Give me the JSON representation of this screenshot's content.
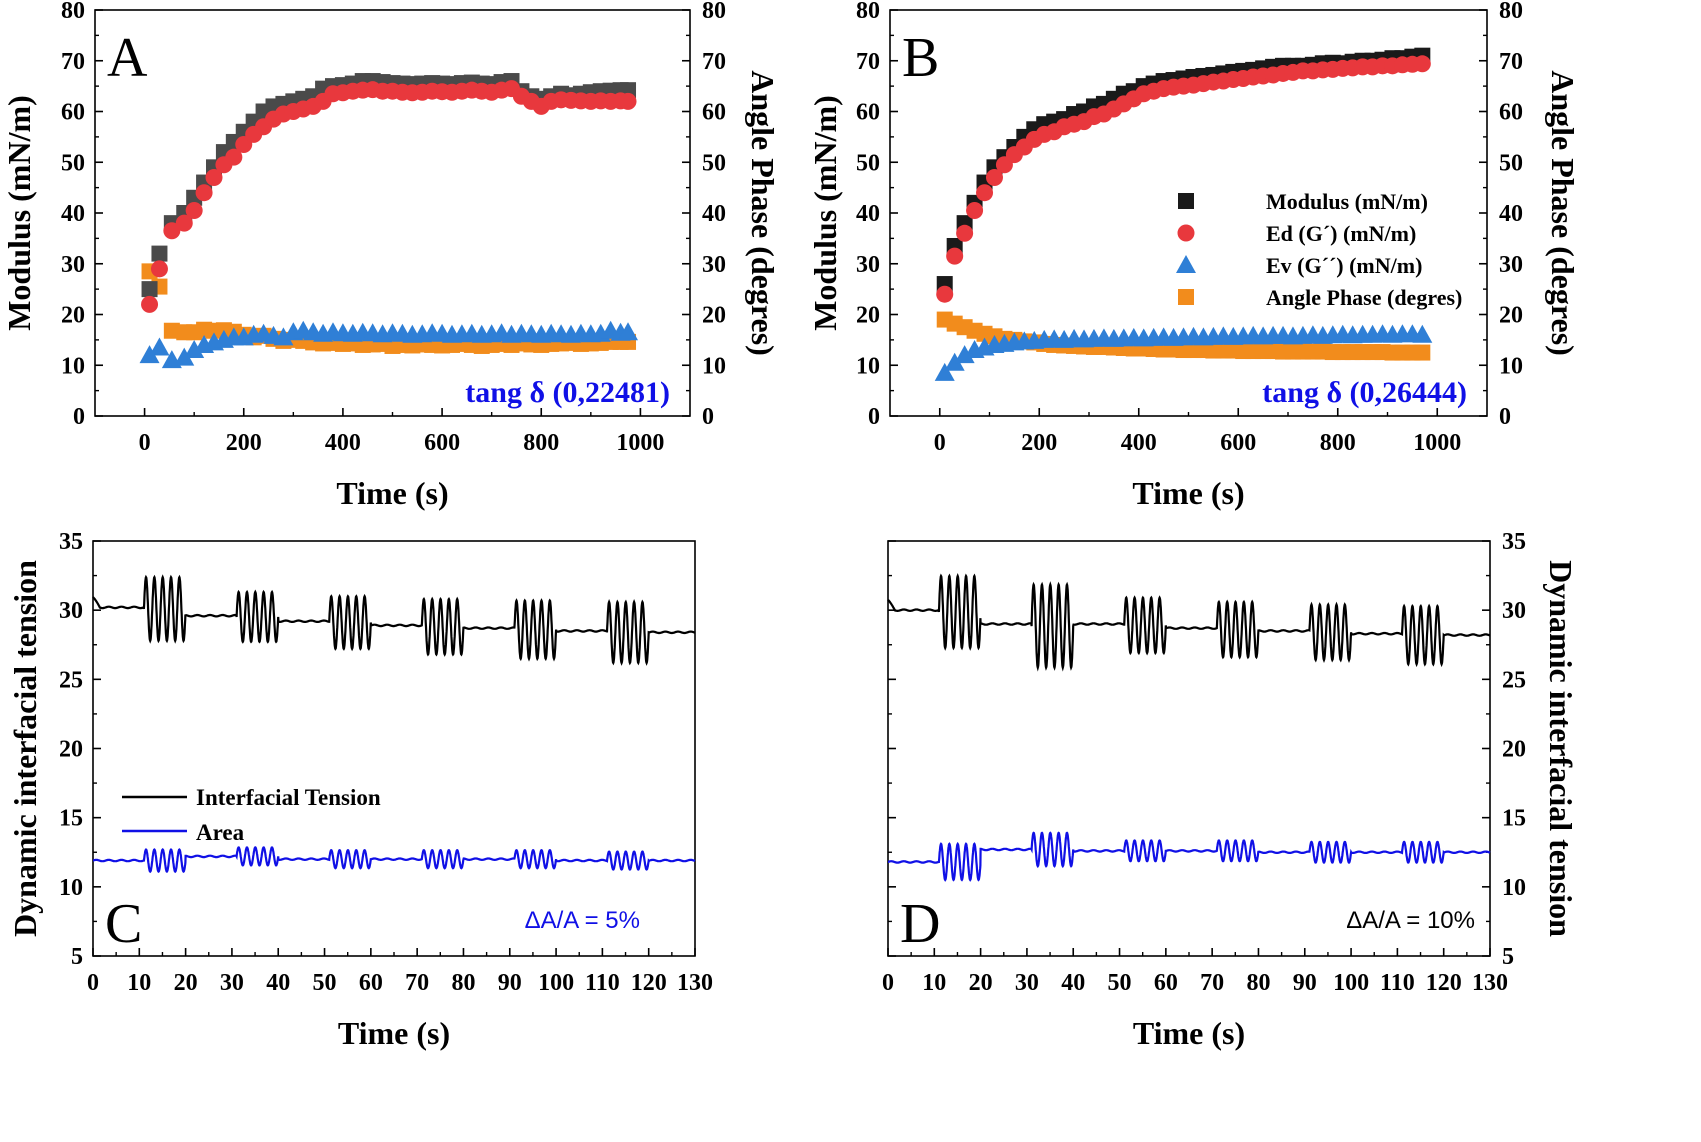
{
  "colors": {
    "modulus": "#1a1a1a",
    "modulus_A": "#4a4a4a",
    "ed": "#e8383d",
    "ev": "#2f7fd6",
    "angle": "#f28c1c",
    "tension": "#000000",
    "area": "#1010e6",
    "annotation_blue": "#1010e6"
  },
  "chart_data": [
    {
      "panel": "A",
      "type": "scatter",
      "title": "",
      "panel_label": "A",
      "xlabel": "Time (s)",
      "ylabel": "Modulus (mN/m)",
      "y2label": "Angle Phase (degres)",
      "xlim": [
        -100,
        1100
      ],
      "ylim": [
        0,
        80
      ],
      "y2lim": [
        0,
        80
      ],
      "xticks": [
        0,
        200,
        400,
        600,
        800,
        1000
      ],
      "yticks": [
        0,
        10,
        20,
        30,
        40,
        50,
        60,
        70,
        80
      ],
      "y2ticks": [
        0,
        10,
        20,
        30,
        40,
        50,
        60,
        70,
        80
      ],
      "annotation": "tang δ (0,22481)",
      "series": [
        {
          "key": "modulus",
          "x": [
            10,
            30,
            55,
            80,
            100,
            120,
            140,
            160,
            180,
            200,
            220,
            240,
            260,
            280,
            300,
            320,
            340,
            360,
            380,
            400,
            420,
            440,
            460,
            480,
            500,
            520,
            540,
            560,
            580,
            600,
            620,
            640,
            660,
            680,
            700,
            720,
            740,
            760,
            780,
            800,
            820,
            840,
            860,
            880,
            900,
            920,
            940,
            960,
            975
          ],
          "y": [
            25,
            32,
            38,
            40,
            43,
            46,
            49,
            52,
            54,
            56,
            58,
            60,
            61,
            61.5,
            62,
            62.5,
            63,
            64.5,
            65,
            65.2,
            65.5,
            66,
            66,
            65.8,
            65.6,
            65.5,
            65.4,
            65.5,
            65.6,
            65.5,
            65.4,
            65.6,
            65.7,
            65.5,
            65.4,
            65.8,
            66,
            64,
            63,
            62.5,
            63,
            63.5,
            63.2,
            63.5,
            63.8,
            64,
            64.1,
            64.2,
            64.2
          ]
        },
        {
          "key": "ed",
          "x": [
            10,
            30,
            55,
            80,
            100,
            120,
            140,
            160,
            180,
            200,
            220,
            240,
            260,
            280,
            300,
            320,
            340,
            360,
            380,
            400,
            420,
            440,
            460,
            480,
            500,
            520,
            540,
            560,
            580,
            600,
            620,
            640,
            660,
            680,
            700,
            720,
            740,
            760,
            780,
            800,
            820,
            840,
            860,
            880,
            900,
            920,
            940,
            960,
            975
          ],
          "y": [
            22,
            29,
            36.5,
            38,
            40.5,
            44,
            47,
            49.5,
            51,
            53.5,
            55.5,
            57,
            58.5,
            59.5,
            60,
            60.5,
            61,
            62,
            63.5,
            63.7,
            64,
            64.2,
            64.3,
            64,
            64,
            63.8,
            63.7,
            63.8,
            64,
            63.9,
            63.8,
            64,
            64.2,
            64,
            63.8,
            64.2,
            64.5,
            63,
            62,
            61,
            62,
            62.3,
            62.2,
            62.1,
            62,
            62.1,
            62,
            62.1,
            62
          ]
        },
        {
          "key": "ev",
          "x": [
            10,
            30,
            55,
            80,
            100,
            120,
            140,
            160,
            180,
            200,
            220,
            240,
            260,
            280,
            300,
            320,
            340,
            360,
            380,
            400,
            420,
            440,
            460,
            480,
            500,
            520,
            540,
            560,
            580,
            600,
            620,
            640,
            660,
            680,
            700,
            720,
            740,
            760,
            780,
            800,
            820,
            840,
            860,
            880,
            900,
            920,
            940,
            960,
            975
          ],
          "y": [
            12,
            13.5,
            11,
            11.5,
            13,
            14,
            14.5,
            15,
            15.5,
            15.5,
            16,
            16.2,
            15.8,
            15.5,
            16.5,
            16.8,
            16.5,
            16.2,
            16.5,
            16.3,
            16.2,
            16.4,
            16.3,
            16.1,
            16.3,
            16.2,
            16,
            16.1,
            16.3,
            16.2,
            16,
            16.1,
            16.2,
            16,
            16.1,
            16.3,
            16,
            16.2,
            16.1,
            16,
            16.2,
            16.1,
            16,
            16.2,
            16.1,
            16.2,
            16.8,
            16.4,
            16.5
          ]
        },
        {
          "key": "angle",
          "x": [
            10,
            30,
            55,
            80,
            100,
            120,
            140,
            160,
            180,
            200,
            220,
            240,
            260,
            280,
            300,
            320,
            340,
            360,
            380,
            400,
            420,
            440,
            460,
            480,
            500,
            520,
            540,
            560,
            580,
            600,
            620,
            640,
            660,
            680,
            700,
            720,
            740,
            760,
            780,
            800,
            820,
            840,
            860,
            880,
            900,
            920,
            940,
            960,
            975
          ],
          "y": [
            28.5,
            25.5,
            16.8,
            16.5,
            16.5,
            17,
            16.8,
            16.9,
            16.6,
            16,
            15.5,
            15.8,
            15.2,
            14.8,
            15,
            14.8,
            14.5,
            14.3,
            14.4,
            14.2,
            14.3,
            14,
            14.1,
            14.2,
            13.8,
            14,
            13.9,
            14.1,
            14,
            13.9,
            14,
            14.2,
            14,
            13.8,
            14,
            14.2,
            14,
            14.3,
            14.1,
            14,
            14.2,
            14.3,
            14.4,
            14.2,
            14.3,
            14.4,
            14.6,
            14.6,
            14.6
          ]
        }
      ]
    },
    {
      "panel": "B",
      "type": "scatter",
      "title": "",
      "panel_label": "B",
      "xlabel": "Time (s)",
      "ylabel": "Modulus (mN/m)",
      "y2label": "Angle Phase (degres)",
      "xlim": [
        -100,
        1100
      ],
      "ylim": [
        0,
        80
      ],
      "y2lim": [
        0,
        80
      ],
      "xticks": [
        0,
        200,
        400,
        600,
        800,
        1000
      ],
      "yticks": [
        0,
        10,
        20,
        30,
        40,
        50,
        60,
        70,
        80
      ],
      "y2ticks": [
        0,
        10,
        20,
        30,
        40,
        50,
        60,
        70,
        80
      ],
      "annotation": "tang δ (0,26444)",
      "legend_position": "center-right",
      "legend": [
        "Modulus (mN/m)",
        "Ed (G´) (mN/m)",
        "Ev (G´´) (mN/m)",
        "Angle Phase (degres)"
      ],
      "series": [
        {
          "name": "Modulus (mN/m)",
          "key": "modulus",
          "x": [
            10,
            30,
            50,
            70,
            90,
            110,
            130,
            150,
            170,
            190,
            210,
            230,
            250,
            270,
            290,
            310,
            330,
            350,
            370,
            390,
            410,
            430,
            450,
            470,
            490,
            510,
            530,
            550,
            570,
            590,
            610,
            630,
            650,
            670,
            690,
            710,
            730,
            750,
            770,
            790,
            810,
            830,
            850,
            870,
            890,
            910,
            930,
            950,
            970
          ],
          "y": [
            26,
            33.5,
            38,
            42,
            46,
            49,
            51,
            53,
            55,
            56.5,
            57.5,
            58,
            58.5,
            59.5,
            60,
            61,
            61.5,
            62.5,
            63.5,
            64,
            65,
            65.5,
            66,
            66.2,
            66.5,
            66.8,
            67,
            67.2,
            67.5,
            67.8,
            68,
            68.2,
            68.5,
            68.8,
            69,
            69,
            69,
            69.2,
            69.5,
            69.6,
            69.5,
            69.8,
            70,
            70,
            70.2,
            70.5,
            70.5,
            70.8,
            71
          ]
        },
        {
          "name": "Ed (G´) (mN/m)",
          "key": "ed",
          "x": [
            10,
            30,
            50,
            70,
            90,
            110,
            130,
            150,
            170,
            190,
            210,
            230,
            250,
            270,
            290,
            310,
            330,
            350,
            370,
            390,
            410,
            430,
            450,
            470,
            490,
            510,
            530,
            550,
            570,
            590,
            610,
            630,
            650,
            670,
            690,
            710,
            730,
            750,
            770,
            790,
            810,
            830,
            850,
            870,
            890,
            910,
            930,
            950,
            970
          ],
          "y": [
            24,
            31.5,
            36,
            40.5,
            44,
            47,
            49.5,
            51.5,
            53,
            54.5,
            55.5,
            56,
            57,
            57.5,
            58,
            59,
            59.5,
            60.5,
            61.5,
            62.5,
            63.5,
            64,
            64.5,
            64.8,
            65,
            65.2,
            65.5,
            65.8,
            66,
            66.3,
            66.5,
            66.8,
            67,
            67.2,
            67.5,
            67.7,
            68,
            68,
            68.2,
            68.3,
            68.5,
            68.6,
            68.8,
            68.8,
            69,
            69,
            69.2,
            69.3,
            69.4
          ]
        },
        {
          "name": "Ev (G´´) (mN/m)",
          "key": "ev",
          "x": [
            10,
            30,
            50,
            70,
            90,
            110,
            130,
            150,
            170,
            190,
            210,
            230,
            250,
            270,
            290,
            310,
            330,
            350,
            370,
            390,
            410,
            430,
            450,
            470,
            490,
            510,
            530,
            550,
            570,
            590,
            610,
            630,
            650,
            670,
            690,
            710,
            730,
            750,
            770,
            790,
            810,
            830,
            850,
            870,
            890,
            910,
            930,
            950,
            970
          ],
          "y": [
            8.5,
            10.5,
            12,
            13,
            13.5,
            14,
            14.2,
            14.5,
            14.7,
            14.8,
            15,
            15.1,
            15,
            15.2,
            15.1,
            15.2,
            15.3,
            15.2,
            15.3,
            15.4,
            15.3,
            15.4,
            15.5,
            15.4,
            15.5,
            15.6,
            15.5,
            15.6,
            15.7,
            15.6,
            15.7,
            15.8,
            15.7,
            15.8,
            15.8,
            15.7,
            15.8,
            15.9,
            15.8,
            15.9,
            16,
            15.9,
            16,
            16,
            16.1,
            16,
            16.1,
            16.1,
            16
          ]
        },
        {
          "name": "Angle Phase (degres)",
          "key": "angle",
          "x": [
            10,
            30,
            50,
            70,
            90,
            110,
            130,
            150,
            170,
            190,
            210,
            230,
            250,
            270,
            290,
            310,
            330,
            350,
            370,
            390,
            410,
            430,
            450,
            470,
            490,
            510,
            530,
            550,
            570,
            590,
            610,
            630,
            650,
            670,
            690,
            710,
            730,
            750,
            770,
            790,
            810,
            830,
            850,
            870,
            890,
            910,
            930,
            950,
            970
          ],
          "y": [
            19,
            18.2,
            17.5,
            16.8,
            16.2,
            15.7,
            15.2,
            15,
            14.7,
            14.5,
            14.2,
            14,
            13.9,
            13.8,
            13.7,
            13.6,
            13.6,
            13.5,
            13.4,
            13.3,
            13.3,
            13.2,
            13.1,
            13.1,
            13,
            13,
            13,
            12.9,
            12.9,
            12.9,
            12.8,
            12.8,
            12.8,
            12.8,
            12.7,
            12.7,
            12.7,
            12.7,
            12.7,
            12.6,
            12.6,
            12.6,
            12.6,
            12.6,
            12.6,
            12.5,
            12.5,
            12.5,
            12.5
          ]
        }
      ]
    },
    {
      "panel": "C",
      "type": "line",
      "title": "",
      "panel_label": "C",
      "xlabel": "Time (s)",
      "ylabel": "Dynamic interfacial tension",
      "xlim": [
        0,
        130
      ],
      "ylim": [
        5,
        35
      ],
      "xticks": [
        0,
        10,
        20,
        30,
        40,
        50,
        60,
        70,
        80,
        90,
        100,
        110,
        120,
        130
      ],
      "yticks": [
        5,
        10,
        15,
        20,
        25,
        30,
        35
      ],
      "annotation": "ΔA/A = 5%",
      "legend_position": "center-left",
      "legend": [
        "Interfacial Tension",
        "Area"
      ],
      "tension_base": [
        30.2,
        29.6,
        29.2,
        28.9,
        28.7,
        28.5,
        28.4
      ],
      "tension_amp": [
        2.3,
        1.8,
        1.9,
        2.0,
        2.1,
        2.2
      ],
      "area_base": [
        11.9,
        12.2,
        12.0,
        12.0,
        12.0,
        11.9,
        11.9
      ],
      "area_amp": [
        0.8,
        0.65,
        0.65,
        0.65,
        0.65,
        0.65
      ],
      "bursts": [
        [
          11,
          20
        ],
        [
          31,
          40
        ],
        [
          51,
          60
        ],
        [
          71,
          80
        ],
        [
          91,
          100
        ],
        [
          111,
          120
        ]
      ],
      "series": [
        {
          "name": "Interfacial Tension",
          "key": "tension"
        },
        {
          "name": "Area",
          "key": "area"
        }
      ]
    },
    {
      "panel": "D",
      "type": "line",
      "title": "",
      "panel_label": "D",
      "xlabel": "Time (s)",
      "ylabel": "Dynamic interfacial tension",
      "xlim": [
        0,
        130
      ],
      "ylim": [
        5,
        35
      ],
      "xticks": [
        0,
        10,
        20,
        30,
        40,
        50,
        60,
        70,
        80,
        90,
        100,
        110,
        120,
        130
      ],
      "yticks": [
        5,
        10,
        15,
        20,
        25,
        30,
        35
      ],
      "annotation": "ΔA/A = 10%",
      "tension_base": [
        30.0,
        29.0,
        29.0,
        28.7,
        28.5,
        28.3,
        28.2
      ],
      "tension_amp": [
        2.6,
        3.0,
        2.0,
        2.0,
        2.0,
        2.1
      ],
      "area_base": [
        11.8,
        12.7,
        12.6,
        12.6,
        12.5,
        12.5,
        12.5
      ],
      "area_amp": [
        1.3,
        1.2,
        0.75,
        0.75,
        0.75,
        0.75
      ],
      "bursts": [
        [
          11,
          20
        ],
        [
          31,
          40
        ],
        [
          51,
          60
        ],
        [
          71,
          80
        ],
        [
          91,
          100
        ],
        [
          111,
          120
        ]
      ],
      "series": [
        {
          "key": "tension"
        },
        {
          "key": "area"
        }
      ]
    }
  ]
}
